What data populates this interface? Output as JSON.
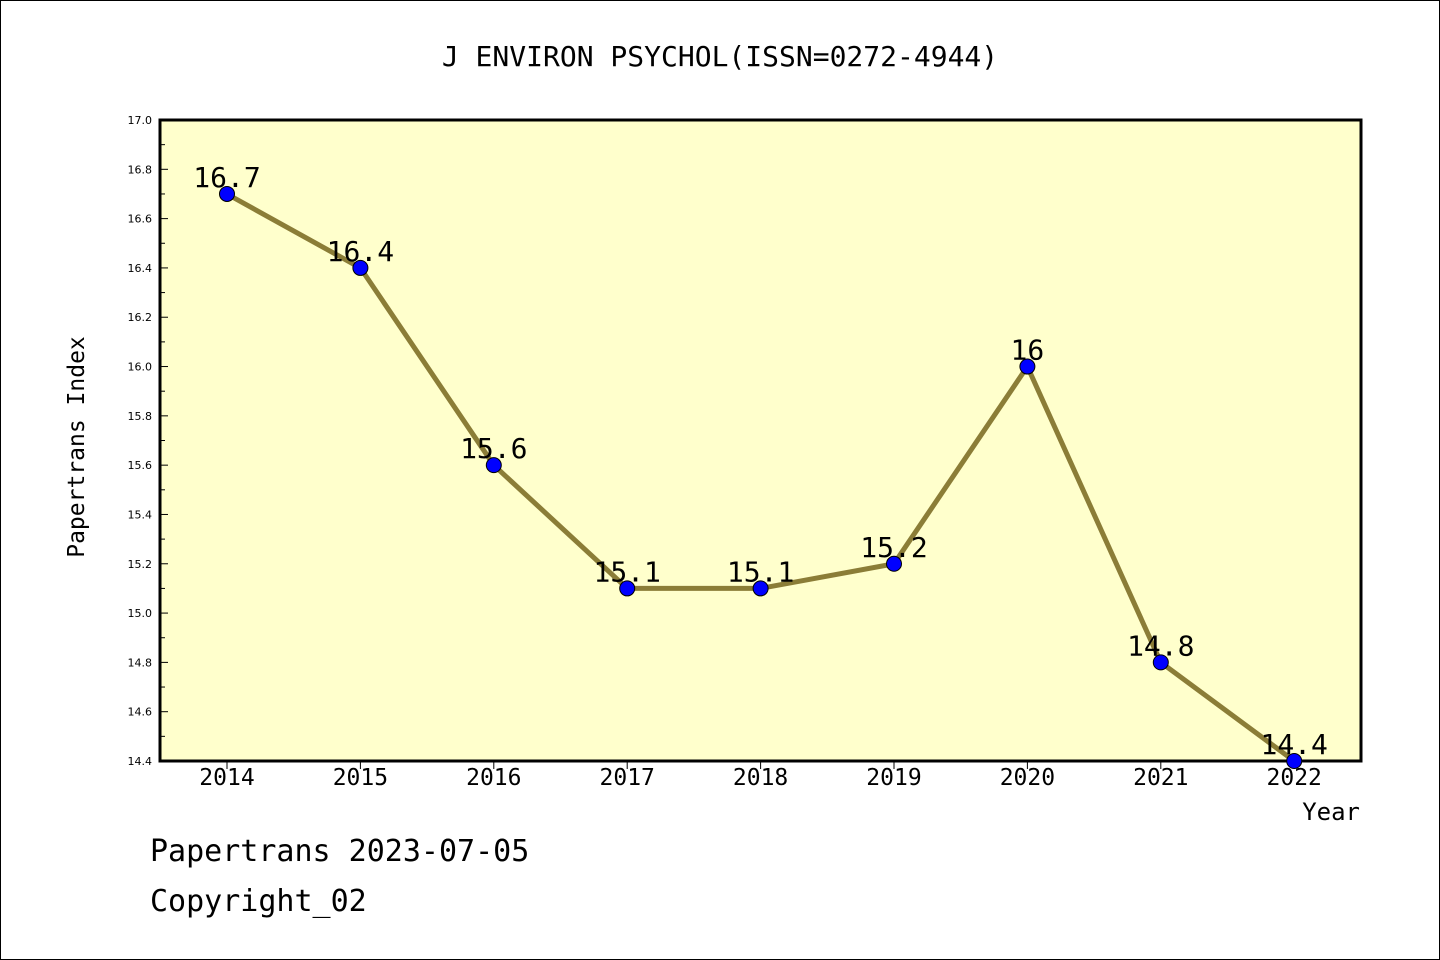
{
  "chart_data": {
    "type": "line",
    "title": "J ENVIRON PSYCHOL(ISSN=0272-4944)",
    "xlabel": "Year",
    "ylabel": "Papertrans Index",
    "categories": [
      "2014",
      "2015",
      "2016",
      "2017",
      "2018",
      "2019",
      "2020",
      "2021",
      "2022"
    ],
    "series": [
      {
        "values": [
          16.7,
          16.4,
          15.6,
          15.1,
          15.1,
          15.2,
          16.0,
          14.8,
          14.4
        ],
        "labels": [
          "16.7",
          "16.4",
          "15.6",
          "15.1",
          "15.1",
          "15.2",
          "16",
          "14.8",
          "14.4"
        ]
      }
    ],
    "ylim": [
      14.4,
      17.0
    ],
    "yticks": [
      "14.4",
      "14.6",
      "14.8",
      "15.0",
      "15.2",
      "15.4",
      "15.6",
      "15.8",
      "16.0",
      "16.2",
      "16.4",
      "16.6",
      "16.8",
      "17.0"
    ],
    "grid": false,
    "colors": {
      "plot_background": "#ffffcc",
      "line": "#8b7d37",
      "marker": "#0000ff",
      "axis": "#000000"
    }
  },
  "footer": {
    "stamp": "Papertrans 2023-07-05",
    "copyright": "Copyright_02"
  }
}
